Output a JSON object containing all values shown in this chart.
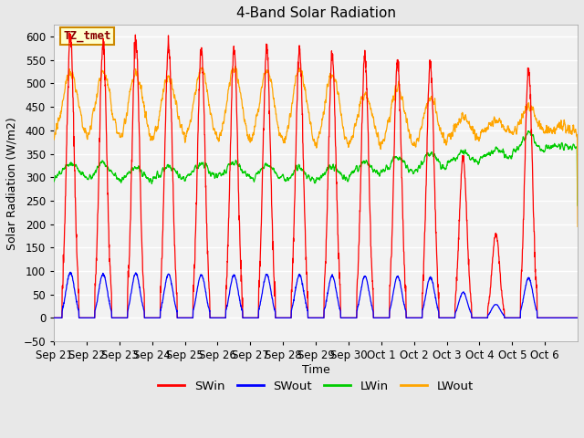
{
  "title": "4-Band Solar Radiation",
  "xlabel": "Time",
  "ylabel": "Solar Radiation (W/m2)",
  "ylim": [
    -50,
    625
  ],
  "yticks": [
    -50,
    0,
    50,
    100,
    150,
    200,
    250,
    300,
    350,
    400,
    450,
    500,
    550,
    600
  ],
  "colors": {
    "SWin": "#ff0000",
    "SWout": "#0000ff",
    "LWin": "#00cc00",
    "LWout": "#ffa500"
  },
  "fig_bg": "#e8e8e8",
  "plot_bg": "#f2f2f2",
  "annotation_text": "TZ_tmet",
  "annotation_bg": "#ffffcc",
  "annotation_border": "#cc8800",
  "annotation_text_color": "#880000",
  "n_days": 16,
  "pts_per_day": 144,
  "tick_labels": [
    "Sep 21",
    "Sep 22",
    "Sep 23",
    "Sep 24",
    "Sep 25",
    "Sep 26",
    "Sep 27",
    "Sep 28",
    "Sep 29",
    "Sep 30",
    "Oct 1",
    "Oct 2",
    "Oct 3",
    "Oct 4",
    "Oct 5",
    "Oct 6"
  ],
  "swin_peaks": [
    600,
    585,
    590,
    580,
    575,
    570,
    575,
    570,
    560,
    555,
    550,
    540,
    340,
    180,
    530,
    0
  ],
  "swout_scale": 0.16,
  "lwin_base": [
    300,
    295,
    290,
    295,
    300,
    300,
    295,
    290,
    295,
    305,
    310,
    315,
    330,
    340,
    355,
    365
  ],
  "lwin_bump": [
    30,
    35,
    30,
    28,
    30,
    32,
    30,
    30,
    28,
    30,
    35,
    38,
    25,
    20,
    35,
    0
  ],
  "lwout_base": [
    378,
    375,
    370,
    372,
    368,
    365,
    362,
    358,
    358,
    360,
    358,
    360,
    380,
    395,
    390,
    395
  ],
  "lwout_peak": [
    525,
    525,
    520,
    515,
    530,
    530,
    528,
    530,
    520,
    475,
    490,
    470,
    430,
    420,
    450,
    410
  ],
  "noise_seed": 17
}
